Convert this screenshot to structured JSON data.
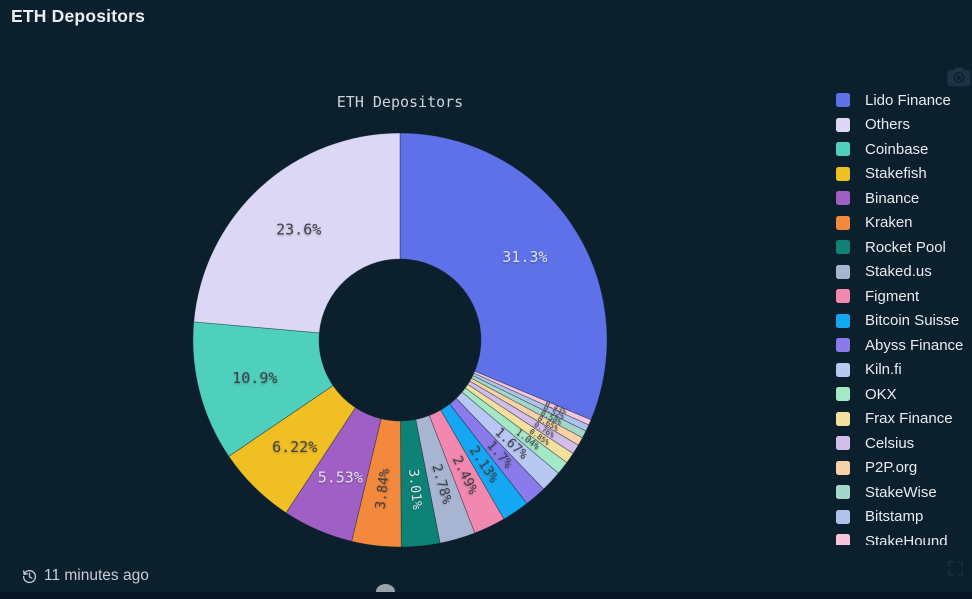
{
  "header": {
    "title": "ETH Depositors"
  },
  "chart": {
    "title": "ETH Depositors"
  },
  "chart_data": {
    "type": "pie",
    "subtype": "donut",
    "title": "ETH Depositors",
    "unit": "%",
    "legend_position": "right",
    "legend_last_item_clipped": true,
    "series": [
      {
        "name": "Lido Finance",
        "value": 31.3,
        "label": "31.3%",
        "color": "#5E71E9"
      },
      {
        "name": "Others",
        "value": 23.6,
        "label": "23.6%",
        "color": "#DBD7F4"
      },
      {
        "name": "Coinbase",
        "value": 10.9,
        "label": "10.9%",
        "color": "#4FD0BD"
      },
      {
        "name": "Stakefish",
        "value": 6.22,
        "label": "6.22%",
        "color": "#EFBF24"
      },
      {
        "name": "Binance",
        "value": 5.53,
        "label": "5.53%",
        "color": "#A05FC5"
      },
      {
        "name": "Kraken",
        "value": 3.84,
        "label": "3.84%",
        "color": "#F2893C"
      },
      {
        "name": "Rocket Pool",
        "value": 3.01,
        "label": "3.01%",
        "color": "#0E8276"
      },
      {
        "name": "Staked.us",
        "value": 2.78,
        "label": "2.78%",
        "color": "#A8B5D2"
      },
      {
        "name": "Figment",
        "value": 2.49,
        "label": "2.49%",
        "color": "#F287B0"
      },
      {
        "name": "Bitcoin Suisse",
        "value": 2.13,
        "label": "2.13%",
        "color": "#16A7F2"
      },
      {
        "name": "Abyss Finance",
        "value": 1.7,
        "label": "1.7%",
        "color": "#8B7AEB"
      },
      {
        "name": "Kiln.fi",
        "value": 1.67,
        "label": "1.67%",
        "color": "#B9C7F3"
      },
      {
        "name": "OKX",
        "value": 1.04,
        "label": "1.04%",
        "color": "#A5E8C6"
      },
      {
        "name": "Frax Finance",
        "value": 0.85,
        "label": "0.85%",
        "color": "#F3DF9E"
      },
      {
        "name": "Celsius",
        "value": 0.76,
        "label": "0.76%",
        "color": "#D2BDEB"
      },
      {
        "name": "P2P.org",
        "value": 0.65,
        "label": "0.65%",
        "color": "#F8D2A6"
      },
      {
        "name": "StakeWise",
        "value": 0.58,
        "label": "0.58%",
        "color": "#A3D8C9"
      },
      {
        "name": "Bitstamp",
        "value": 0.52,
        "label": "0.52%",
        "color": "#B0C2EB"
      },
      {
        "name": "StakeHound",
        "value": 0.43,
        "label": "0.43%",
        "color": "#F7C6DA"
      }
    ]
  },
  "footer": {
    "updated_text": "11 minutes ago"
  },
  "icons": {
    "history": "history-clock-icon",
    "screenshot": "camera-icon",
    "resize": "fullscreen-corners-icon"
  },
  "colors": {
    "background": "#0C1F2D",
    "bottom_band": "#081623",
    "header_text": "#ECEFF2",
    "chart_title_text": "#CED3D9",
    "legend_text": "#E9ECF0",
    "timestamp_text": "#C8CDD5",
    "label_dark": "#3E4049",
    "label_light": "#E0E3EE"
  }
}
